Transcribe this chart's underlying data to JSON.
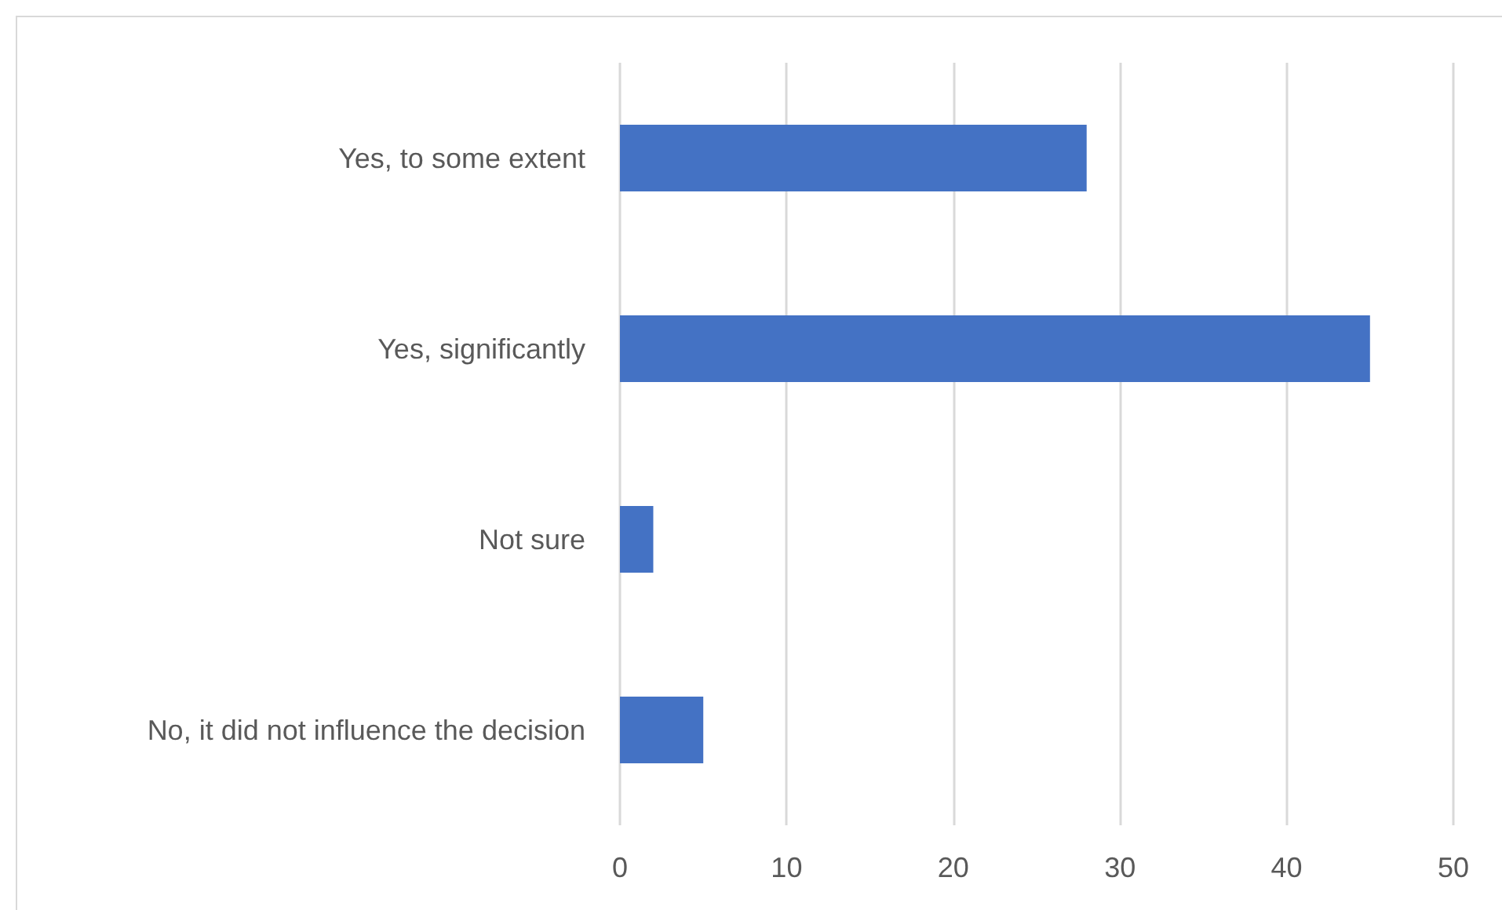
{
  "chart_data": {
    "type": "bar",
    "orientation": "horizontal",
    "categories": [
      "Yes, to some extent",
      "Yes, significantly",
      "Not sure",
      "No, it did not influence the decision"
    ],
    "values": [
      28,
      45,
      2,
      5
    ],
    "color": "#4472c4",
    "xlim": [
      0,
      50
    ],
    "xticks": [
      0,
      10,
      20,
      30,
      40,
      50
    ],
    "grid": "x"
  }
}
